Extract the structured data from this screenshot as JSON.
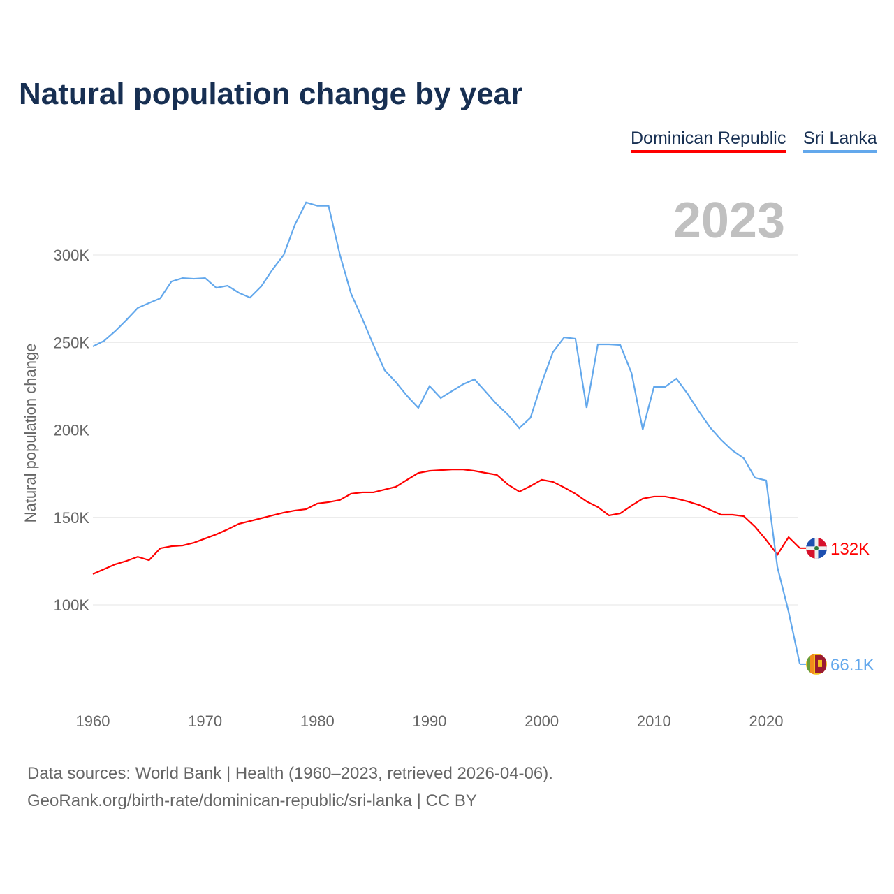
{
  "title": "Natural population change by year",
  "legend": [
    "Dominican Republic",
    "Sri Lanka"
  ],
  "year_label": "2023",
  "source_line1": "Data sources: World Bank | Health (1960–2023, retrieved 2026-04-06).",
  "source_line2": "GeoRank.org/birth-rate/dominican-republic/sri-lanka | CC BY",
  "chart_data": {
    "type": "line",
    "title": "Natural population change by year",
    "xlabel": "",
    "ylabel": "Natural population change",
    "xlim": [
      1960,
      2023
    ],
    "ylim": [
      60000,
      335000
    ],
    "xticks": [
      1960,
      1970,
      1980,
      1990,
      2000,
      2010,
      2020
    ],
    "yticks": [
      100000,
      150000,
      200000,
      250000,
      300000
    ],
    "ytick_labels": [
      "100K",
      "150K",
      "200K",
      "250K",
      "300K"
    ],
    "grid": "horizontal",
    "legend_position": "top-right",
    "x": [
      1960,
      1961,
      1962,
      1963,
      1964,
      1965,
      1966,
      1967,
      1968,
      1969,
      1970,
      1971,
      1972,
      1973,
      1974,
      1975,
      1976,
      1977,
      1978,
      1979,
      1980,
      1981,
      1982,
      1983,
      1984,
      1985,
      1986,
      1987,
      1988,
      1989,
      1990,
      1991,
      1992,
      1993,
      1994,
      1995,
      1996,
      1997,
      1998,
      1999,
      2000,
      2001,
      2002,
      2003,
      2004,
      2005,
      2006,
      2007,
      2008,
      2009,
      2010,
      2011,
      2012,
      2013,
      2014,
      2015,
      2016,
      2017,
      2018,
      2019,
      2020,
      2021,
      2022,
      2023
    ],
    "series": [
      {
        "name": "Dominican Republic",
        "color": "#ff0000",
        "end_label": "132K",
        "values": [
          117600,
          120400,
          123200,
          125100,
          127500,
          125500,
          132300,
          133500,
          133900,
          135500,
          137900,
          140300,
          143100,
          146300,
          147900,
          149500,
          151100,
          152700,
          153900,
          154700,
          157900,
          158700,
          159900,
          163500,
          164300,
          164300,
          165900,
          167500,
          171500,
          175400,
          176600,
          177000,
          177400,
          177400,
          176600,
          175400,
          174300,
          168700,
          164700,
          167900,
          171500,
          170300,
          167100,
          163500,
          159100,
          155900,
          151100,
          152300,
          156700,
          160700,
          161900,
          161900,
          160700,
          159100,
          157100,
          154300,
          151500,
          151500,
          150700,
          144700,
          137100,
          128700,
          138700,
          132400
        ]
      },
      {
        "name": "Sri Lanka",
        "color": "#63a8ec",
        "end_label": "66.1K",
        "values": [
          247700,
          250900,
          256500,
          262900,
          269700,
          272500,
          275200,
          284800,
          286800,
          286400,
          286800,
          281200,
          282400,
          278400,
          275600,
          282000,
          291600,
          300000,
          317200,
          330000,
          328100,
          328100,
          300400,
          278000,
          263700,
          248500,
          234100,
          227300,
          219400,
          212600,
          225000,
          218200,
          222200,
          226100,
          228900,
          221800,
          214600,
          208600,
          201000,
          207000,
          227000,
          244500,
          252900,
          252100,
          212600,
          248900,
          248900,
          248500,
          232500,
          200200,
          224600,
          224600,
          229300,
          220600,
          210600,
          201400,
          194200,
          188200,
          183800,
          172700,
          171100,
          121600,
          96000,
          66100
        ]
      }
    ]
  }
}
